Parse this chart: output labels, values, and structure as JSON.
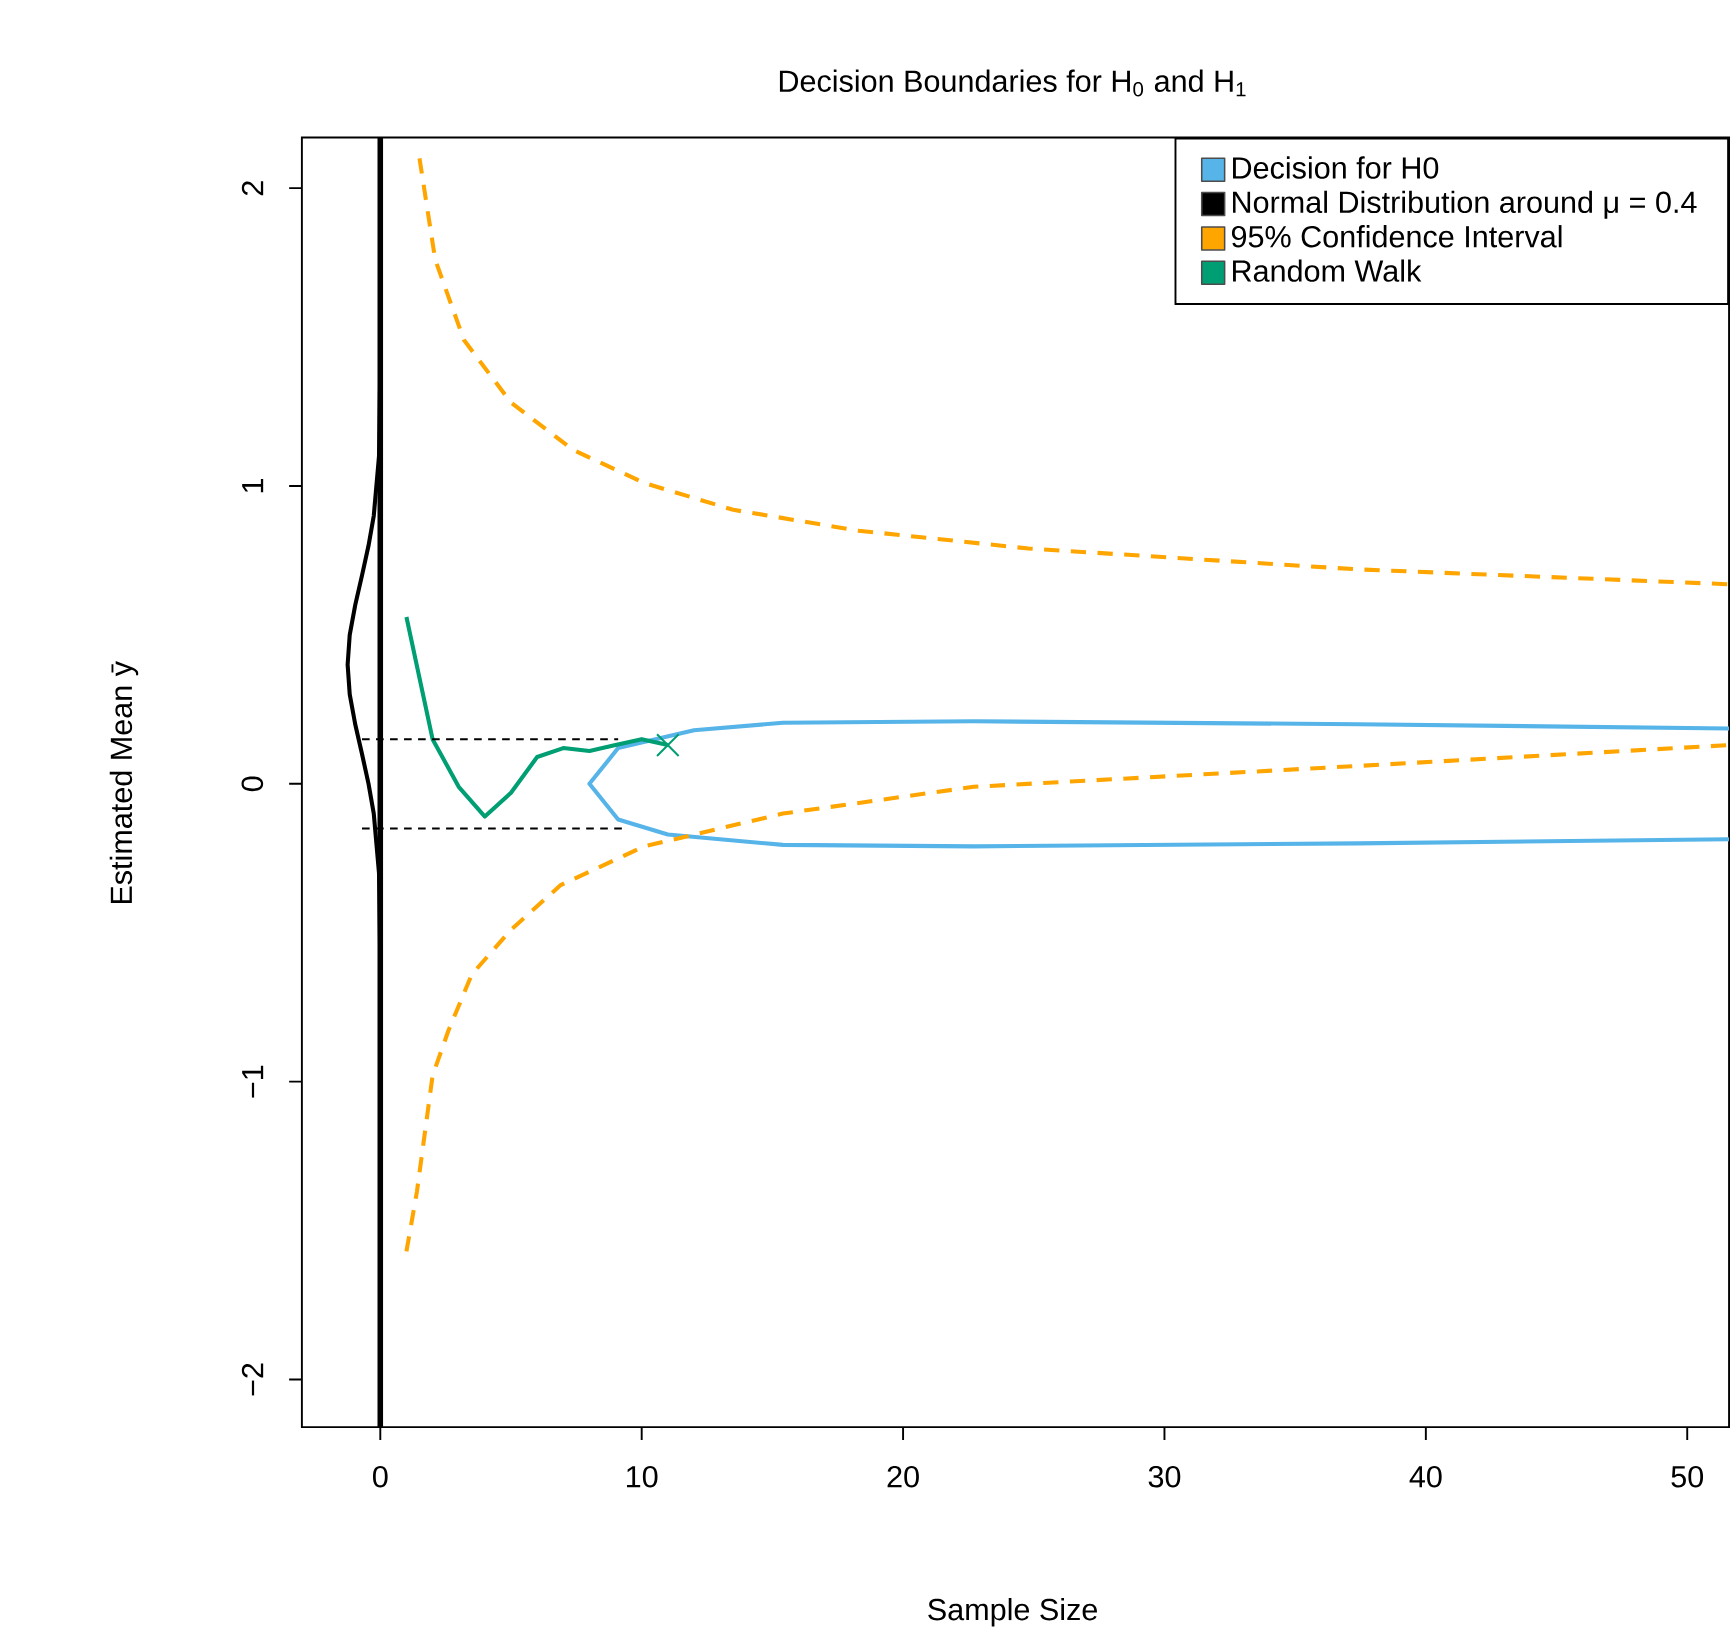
{
  "chart_data": {
    "type": "line",
    "title": "Decision Boundaries for H$_{0}$ and H$_{1}$",
    "xlabel": "Sample Size",
    "ylabel": "Estimated Mean ȳ",
    "xlim": [
      -3,
      51.6
    ],
    "ylim": [
      -2.16,
      2.17
    ],
    "xticks": [
      0,
      10,
      20,
      30,
      40,
      50
    ],
    "yticks": [
      {
        "value": -2,
        "label": "−2"
      },
      {
        "value": -1,
        "label": "−1"
      },
      0,
      1,
      2
    ],
    "legend": "top right",
    "grid": false,
    "ref_lines": [
      {
        "axis": "x",
        "value": 0,
        "color": "#000000"
      }
    ],
    "series": [
      {
        "name": "Decision for H0",
        "color": "#56b4e9",
        "line_style": "solid",
        "x": [
          51.6,
          37.4,
          22.7,
          15.4,
          12.0,
          9.1,
          8.0,
          9.1,
          11.0,
          15.4,
          22.7,
          37.4,
          51.6
        ],
        "values": [
          0.186,
          0.2,
          0.21,
          0.205,
          0.18,
          0.12,
          0.0,
          -0.12,
          -0.17,
          -0.205,
          -0.21,
          -0.2,
          -0.186
        ]
      },
      {
        "name": "Normal Distribution around μ = 0.4",
        "color": "#000000",
        "line_style": "solid",
        "x": [
          0,
          -0.05,
          -0.25,
          -0.45,
          -0.7,
          -0.96,
          -1.17,
          -1.25,
          -1.17,
          -0.96,
          -0.7,
          -0.45,
          -0.25,
          -0.05,
          0
        ],
        "values": [
          -0.6,
          -0.3,
          -0.1,
          0.0,
          0.1,
          0.2,
          0.3,
          0.4,
          0.5,
          0.6,
          0.7,
          0.8,
          0.9,
          1.1,
          1.4
        ]
      },
      {
        "name": "95% Confidence Interval",
        "color": "#ffa500",
        "line_style": "dashed",
        "x": [
          1.5,
          2.1,
          3.2,
          5.0,
          7.4,
          10.1,
          13.5,
          18.3,
          24.8,
          37.4,
          51.6
        ],
        "values": [
          2.1,
          1.76,
          1.49,
          1.28,
          1.12,
          1.01,
          0.92,
          0.85,
          0.79,
          0.72,
          0.67
        ]
      },
      {
        "color": "#ffa500",
        "line_style": "dashed",
        "x": [
          1.0,
          1.4,
          2.0,
          2.6,
          3.5,
          5.0,
          6.9,
          10.1,
          15.4,
          22.7,
          37.4,
          51.6
        ],
        "values": [
          -1.57,
          -1.37,
          -0.98,
          -0.83,
          -0.64,
          -0.49,
          -0.34,
          -0.21,
          -0.1,
          -0.01,
          0.06,
          0.13
        ]
      },
      {
        "name": "Random Walk",
        "color": "#009e73",
        "line_style": "solid",
        "x": [
          1,
          2,
          3,
          4,
          5,
          6,
          7,
          8,
          9,
          10,
          11
        ],
        "values": [
          0.56,
          0.15,
          -0.01,
          -0.11,
          -0.03,
          0.09,
          0.12,
          0.11,
          0.13,
          0.15,
          0.13
        ]
      },
      {
        "type": "scatter",
        "color": "#009e73",
        "marker": "cross",
        "x": [
          11
        ],
        "values": [
          0.13
        ]
      },
      {
        "color": "#000000",
        "line_style": "dashed",
        "x": [
          -0.7,
          9.1
        ],
        "values": [
          0.15,
          0.15
        ]
      },
      {
        "color": "#000000",
        "line_style": "dashed",
        "x": [
          -0.7,
          9.4
        ],
        "values": [
          -0.15,
          -0.15
        ]
      }
    ]
  }
}
